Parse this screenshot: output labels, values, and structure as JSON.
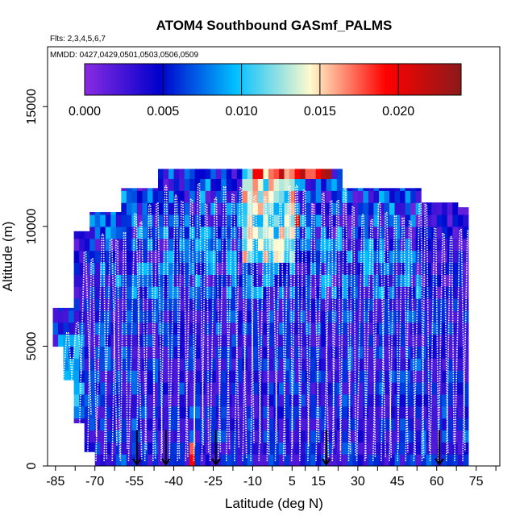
{
  "chart_data": {
    "type": "heatmap",
    "title": "ATOM4 Southbound GASmf_PALMS",
    "flights_label": "Flts: 2,3,4,5,6,7",
    "dates_label": "MMDD: 0427,0429,0501,0503,0506,0509",
    "xlabel": "Latitude (deg N)",
    "ylabel": "Altitude (m)",
    "xlim": [
      -88,
      84
    ],
    "ylim": [
      0,
      17500
    ],
    "x_ticks": [
      "-85",
      "-70",
      "-55",
      "-40",
      "-25",
      "-10",
      "5",
      "15",
      "30",
      "45",
      "60",
      "75"
    ],
    "x_tick_values": [
      -85,
      -70,
      -55,
      -40,
      -25,
      -10,
      5,
      15,
      30,
      45,
      60,
      75
    ],
    "x_minor_tick_values": [
      -77.5,
      -62.5,
      -47.5,
      -32.5,
      -17.5,
      -2.5,
      10,
      22.5,
      37.5,
      52.5,
      67.5,
      82.5
    ],
    "y_ticks": [
      "0",
      "5000",
      "10000",
      "15000"
    ],
    "y_tick_values": [
      0,
      5000,
      10000,
      15000
    ],
    "colorbar": {
      "range": [
        0,
        0.024
      ],
      "tick_labels": [
        "0.000",
        "0.005",
        "0.010",
        "0.015",
        "0.020"
      ],
      "tick_values": [
        0,
        0.005,
        0.01,
        0.015,
        0.02
      ],
      "colors": [
        "#8a2be2",
        "#0000cd",
        "#00bfff",
        "#fffacd",
        "#ff0000",
        "#8b1a1a"
      ]
    },
    "arrow_latitudes": [
      -54,
      -43,
      -24,
      18,
      61
    ],
    "notes": "Curtain of aerosol mass fraction vs latitude and altitude with white dotted flight-track profiles; the white profile markings are decorative and carry no values."
  }
}
